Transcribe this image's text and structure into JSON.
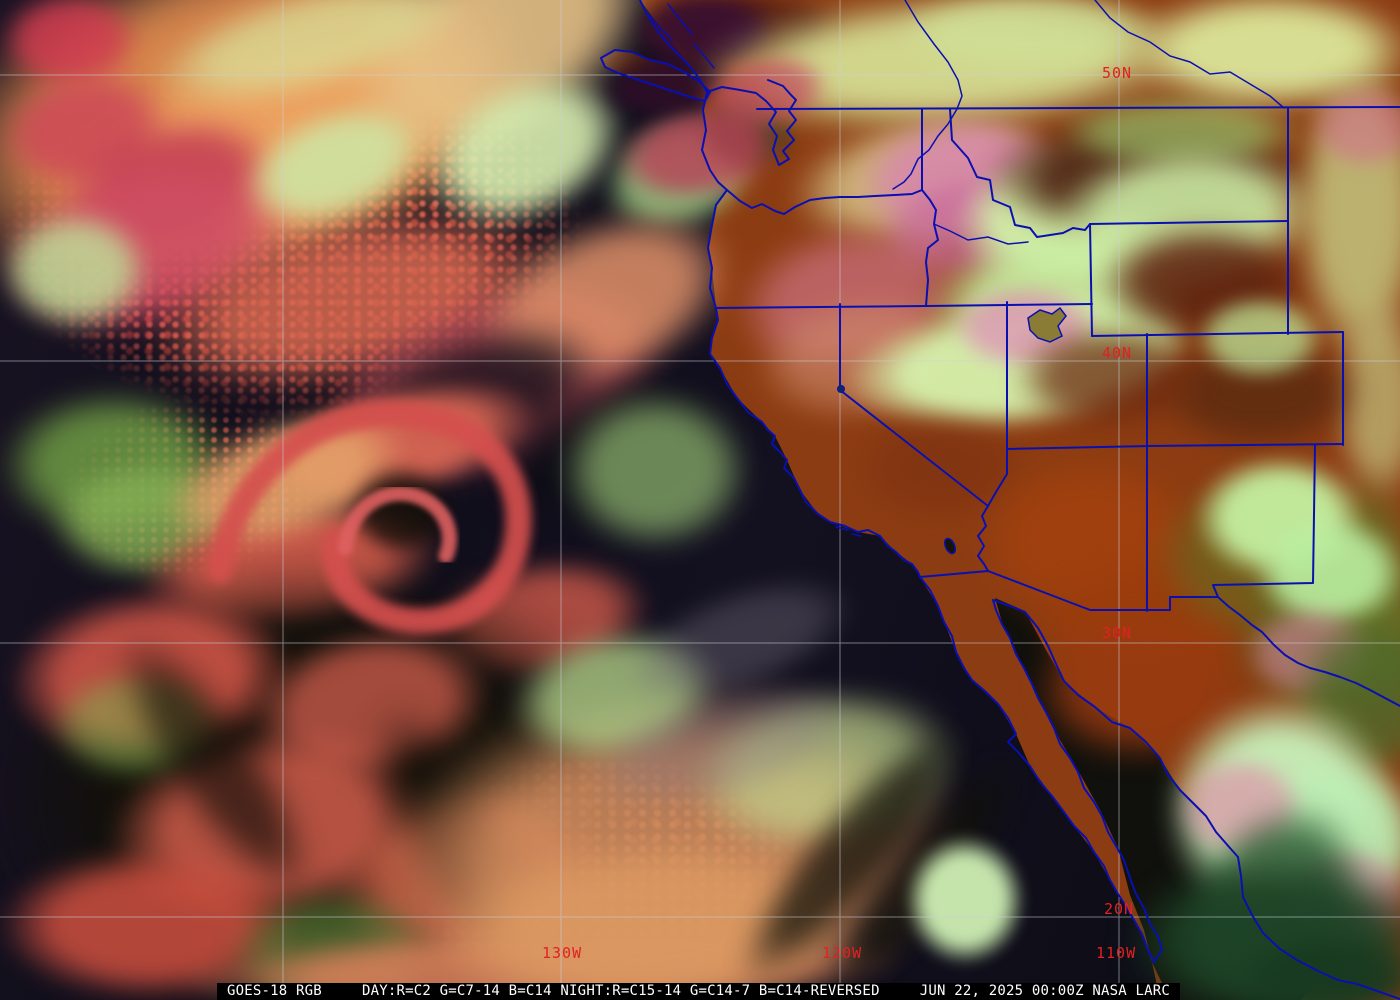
{
  "product_bar": {
    "product": "GOES-18 RGB",
    "recipe": "DAY:R=C2 G=C7-14 B=C14 NIGHT:R=C15-14 G=C14-7 B=C14-REVERSED",
    "timestamp": "JUN 22, 2025 00:00Z NASA LARC"
  },
  "map_overlay": {
    "latitude_labels": [
      {
        "text": "50N"
      },
      {
        "text": "40N"
      },
      {
        "text": "30N"
      },
      {
        "text": "20N"
      }
    ],
    "longitude_labels": [
      {
        "text": "130W"
      },
      {
        "text": "120W"
      },
      {
        "text": "110W"
      }
    ],
    "colors": {
      "political_border": "#0a10b0",
      "gridline": "#ccd0da",
      "coordinate_label": "#e02222",
      "bar_background": "#000000",
      "bar_text": "#ffffff"
    }
  }
}
